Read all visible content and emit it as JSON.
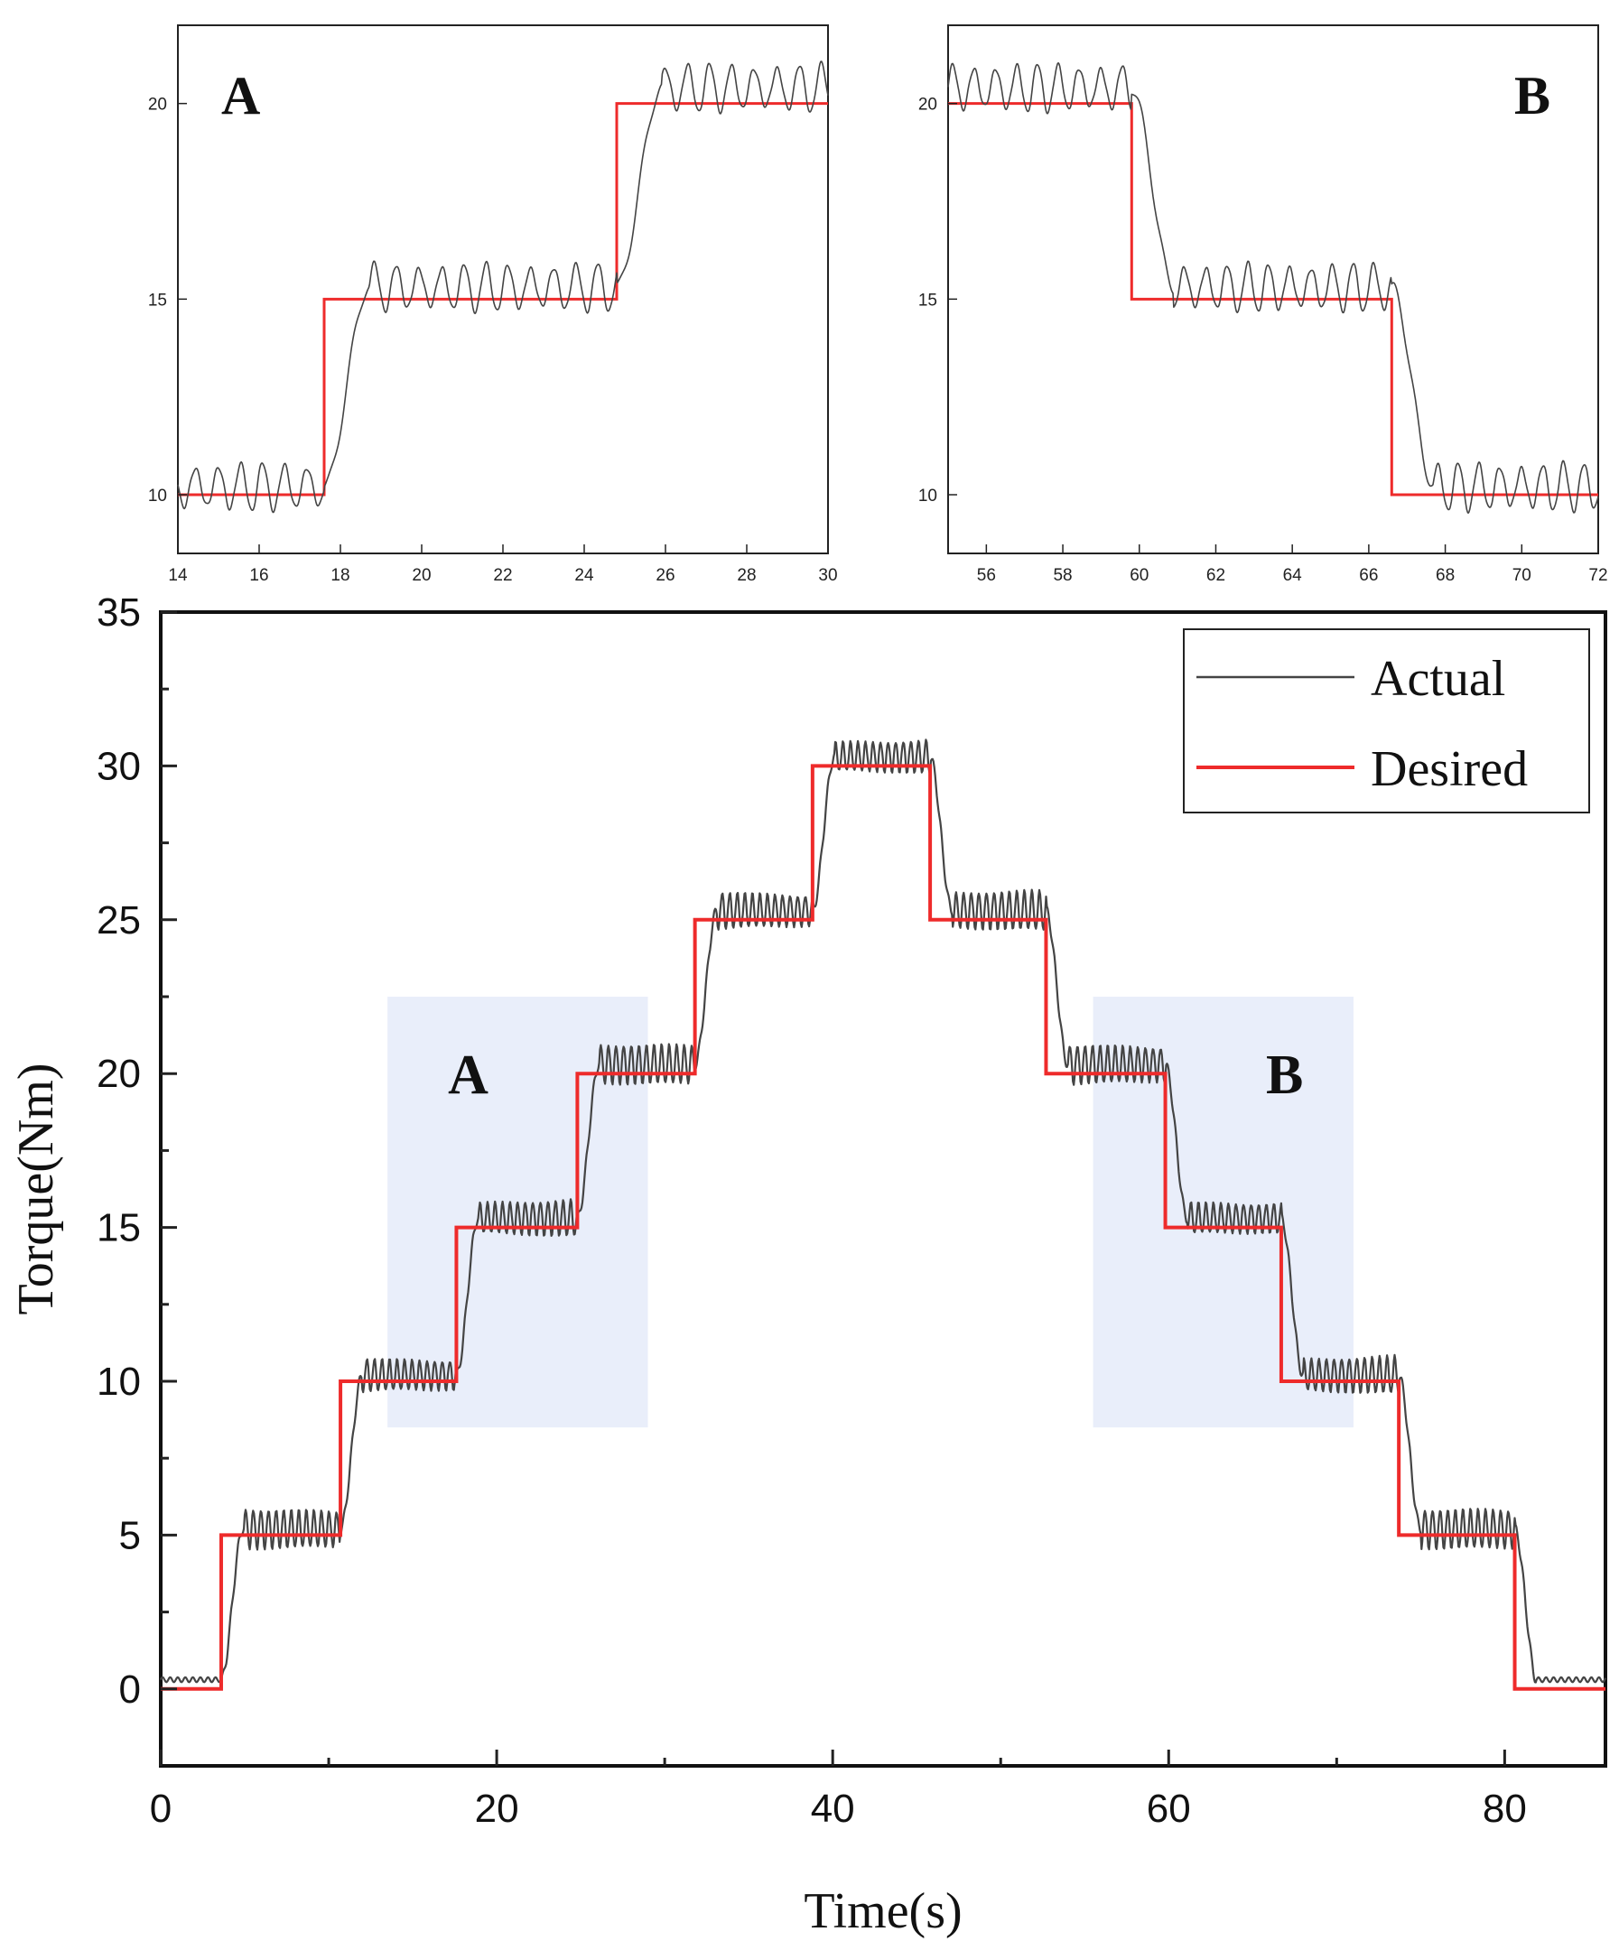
{
  "chart_data": [
    {
      "id": "main",
      "type": "line",
      "xlabel": "Time(s)",
      "ylabel": "Torque(Nm)",
      "xlim": [
        0,
        86
      ],
      "ylim": [
        -2.5,
        35
      ],
      "xticks": [
        0,
        20,
        40,
        60,
        80
      ],
      "xtick_labels": [
        "0",
        "20",
        "40",
        "60",
        "80"
      ],
      "yticks": [
        0,
        5,
        10,
        15,
        20,
        25,
        30,
        35
      ],
      "ytick_labels": [
        "0",
        "5",
        "10",
        "15",
        "20",
        "25",
        "30",
        "35"
      ],
      "legend": {
        "position": "top-right",
        "entries": [
          "Actual",
          "Desired"
        ]
      },
      "regions": [
        {
          "label": "A",
          "x": [
            13.5,
            29
          ],
          "y": [
            8.5,
            22.5
          ]
        },
        {
          "label": "B",
          "x": [
            55.5,
            71
          ],
          "y": [
            8.5,
            22.5
          ]
        }
      ],
      "series": [
        {
          "name": "Desired",
          "color": "#ee2b2b",
          "style": "step",
          "steps": [
            {
              "t": 0,
              "v": 0
            },
            {
              "t": 3.6,
              "v": 5
            },
            {
              "t": 10.7,
              "v": 10
            },
            {
              "t": 17.6,
              "v": 15
            },
            {
              "t": 24.8,
              "v": 20
            },
            {
              "t": 31.8,
              "v": 25
            },
            {
              "t": 38.8,
              "v": 30
            },
            {
              "t": 45.8,
              "v": 25
            },
            {
              "t": 52.7,
              "v": 20
            },
            {
              "t": 59.8,
              "v": 15
            },
            {
              "t": 66.7,
              "v": 10
            },
            {
              "t": 73.7,
              "v": 5
            },
            {
              "t": 80.6,
              "v": 0
            },
            {
              "t": 86,
              "v": 0
            }
          ]
        },
        {
          "name": "Actual",
          "color": "#444444",
          "style": "oscillating",
          "ripple_amplitude": 0.6,
          "ripple_period": 0.8,
          "lag": 1.2,
          "plateaus": [
            0.3,
            5.2,
            10.2,
            15.3,
            20.3,
            25.3,
            30.3,
            25.3,
            20.3,
            15.3,
            10.2,
            5.2,
            0.3
          ]
        }
      ]
    },
    {
      "id": "inset-A",
      "type": "line",
      "label": "A",
      "xlim": [
        14,
        30
      ],
      "ylim": [
        8.5,
        22
      ],
      "xticks": [
        14,
        16,
        18,
        20,
        22,
        24,
        26,
        28,
        30
      ],
      "xtick_labels": [
        "14",
        "16",
        "18",
        "20",
        "22",
        "24",
        "26",
        "28",
        "30"
      ],
      "yticks": [
        10,
        15,
        20
      ],
      "ytick_labels": [
        "10",
        "15",
        "20"
      ],
      "series": [
        {
          "name": "Desired",
          "color": "#ee2b2b",
          "steps": [
            {
              "t": 14,
              "v": 10
            },
            {
              "t": 17.6,
              "v": 15
            },
            {
              "t": 24.8,
              "v": 20
            },
            {
              "t": 30,
              "v": 20
            }
          ]
        },
        {
          "name": "Actual",
          "color": "#444444",
          "plateaus": [
            10.2,
            15.3,
            20.4
          ]
        }
      ]
    },
    {
      "id": "inset-B",
      "type": "line",
      "label": "B",
      "xlim": [
        55,
        72
      ],
      "ylim": [
        8.5,
        22
      ],
      "xticks": [
        56,
        58,
        60,
        62,
        64,
        66,
        68,
        70,
        72
      ],
      "xtick_labels": [
        "56",
        "58",
        "60",
        "62",
        "64",
        "66",
        "68",
        "70",
        "72"
      ],
      "yticks": [
        10,
        15,
        20
      ],
      "ytick_labels": [
        "10",
        "15",
        "20"
      ],
      "series": [
        {
          "name": "Desired",
          "color": "#ee2b2b",
          "steps": [
            {
              "t": 55,
              "v": 20
            },
            {
              "t": 59.8,
              "v": 15
            },
            {
              "t": 66.6,
              "v": 10
            },
            {
              "t": 72,
              "v": 10
            }
          ]
        },
        {
          "name": "Actual",
          "color": "#444444",
          "plateaus": [
            20.4,
            15.3,
            10.2
          ]
        }
      ]
    }
  ]
}
